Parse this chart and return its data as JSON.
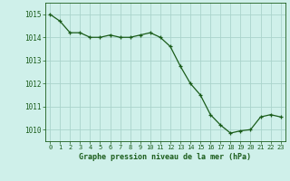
{
  "x": [
    0,
    1,
    2,
    3,
    4,
    5,
    6,
    7,
    8,
    9,
    10,
    11,
    12,
    13,
    14,
    15,
    16,
    17,
    18,
    19,
    20,
    21,
    22,
    23
  ],
  "y": [
    1015.0,
    1014.7,
    1014.2,
    1014.2,
    1014.0,
    1014.0,
    1014.1,
    1014.0,
    1014.0,
    1014.1,
    1014.2,
    1014.0,
    1013.6,
    1012.75,
    1012.0,
    1011.5,
    1010.65,
    1010.2,
    1009.85,
    1009.95,
    1010.0,
    1010.55,
    1010.65,
    1010.55
  ],
  "line_color": "#1a5c1a",
  "marker_color": "#1a5c1a",
  "bg_color": "#cff0ea",
  "grid_color": "#aad4cc",
  "xlabel": "Graphe pression niveau de la mer (hPa)",
  "xlabel_color": "#1a5c1a",
  "tick_color": "#1a5c1a",
  "ylim": [
    1009.5,
    1015.5
  ],
  "yticks": [
    1010,
    1011,
    1012,
    1013,
    1014,
    1015
  ],
  "xticks": [
    0,
    1,
    2,
    3,
    4,
    5,
    6,
    7,
    8,
    9,
    10,
    11,
    12,
    13,
    14,
    15,
    16,
    17,
    18,
    19,
    20,
    21,
    22,
    23
  ]
}
